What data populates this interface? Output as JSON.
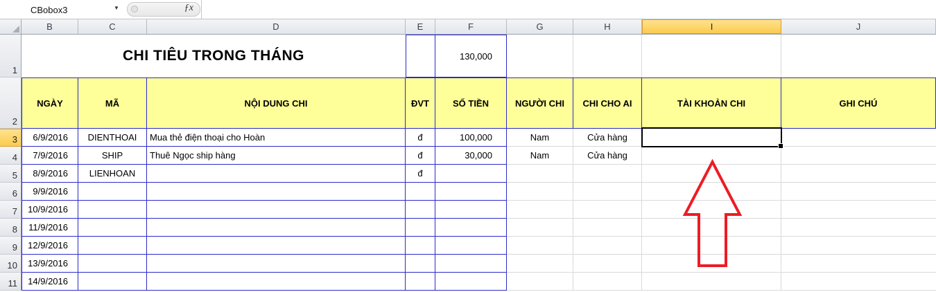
{
  "formula_bar": {
    "name_box_value": "CBobox3",
    "fx_label": "ƒx"
  },
  "sheet": {
    "column_letters": [
      "B",
      "C",
      "D",
      "E",
      "F",
      "G",
      "H",
      "I",
      "J"
    ],
    "selected_column": "I",
    "row_numbers": [
      "1",
      "2",
      "3",
      "4",
      "5",
      "6",
      "7",
      "8",
      "9",
      "10",
      "11"
    ],
    "selected_row": "3",
    "title": "CHI TIÊU TRONG THÁNG",
    "budget_value": "130,000",
    "header_row": [
      "NGÀY",
      "MÃ",
      "NỘI DUNG CHI",
      "ĐVT",
      "SỐ TIỀN",
      "NGƯỜI CHI",
      "CHI CHO AI",
      "TÀI KHOẢN CHI",
      "GHI CHÚ"
    ],
    "data_rows": [
      [
        "6/9/2016",
        "DIENTHOAI",
        "Mua thẻ điện thoại cho Hoàn",
        "đ",
        "100,000",
        "Nam",
        "Cửa hàng",
        "",
        ""
      ],
      [
        "7/9/2016",
        "SHIP",
        "Thuê Ngọc ship hàng",
        "đ",
        "30,000",
        "Nam",
        "Cửa hàng",
        "",
        ""
      ],
      [
        "8/9/2016",
        "LIENHOAN",
        "",
        "đ",
        "",
        "",
        "",
        "",
        ""
      ],
      [
        "9/9/2016",
        "",
        "",
        "",
        "",
        "",
        "",
        "",
        ""
      ],
      [
        "10/9/2016",
        "",
        "",
        "",
        "",
        "",
        "",
        "",
        ""
      ],
      [
        "11/9/2016",
        "",
        "",
        "",
        "",
        "",
        "",
        "",
        ""
      ],
      [
        "12/9/2016",
        "",
        "",
        "",
        "",
        "",
        "",
        "",
        ""
      ],
      [
        "13/9/2016",
        "",
        "",
        "",
        "",
        "",
        "",
        "",
        ""
      ],
      [
        "14/9/2016",
        "",
        "",
        "",
        "",
        "",
        "",
        "",
        ""
      ]
    ],
    "selected_cell": "I3",
    "annotation_shape": "red-up-arrow"
  },
  "colors": {
    "blue": "#2A2ACA",
    "yellow": "#FFFF99",
    "grid": "#D9D9D9",
    "amber_top": "#FFE28E",
    "amber_bottom": "#FBCB4D",
    "amber_border": "#D89E35",
    "red": "#ED1C24"
  }
}
